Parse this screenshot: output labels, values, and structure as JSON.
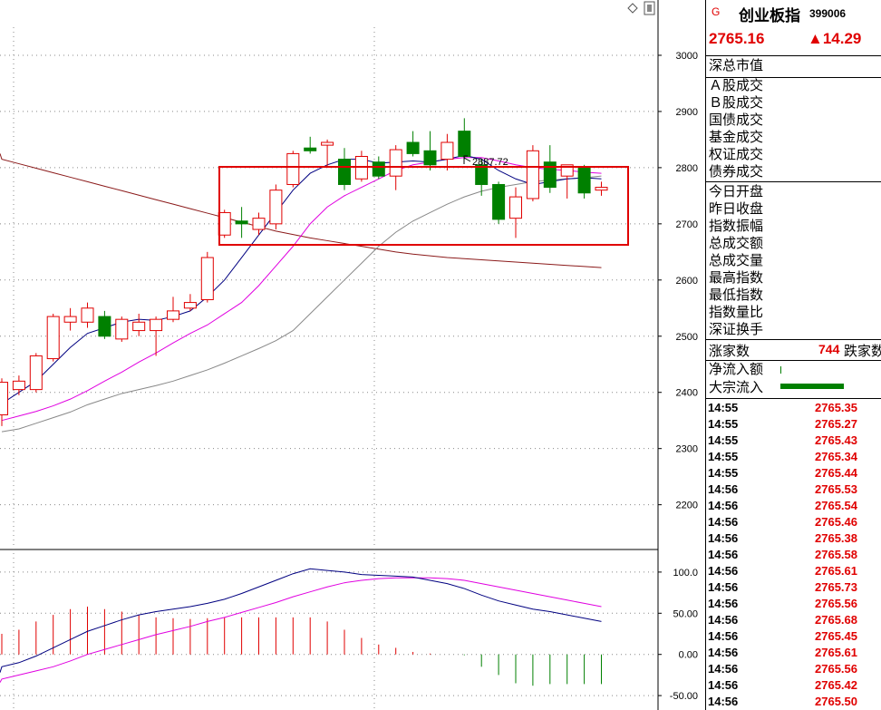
{
  "chart": {
    "y_axis_labels": [
      "3000",
      "2900",
      "2800",
      "2700",
      "2600",
      "2500",
      "2400",
      "2300",
      "2200"
    ],
    "macd_axis_labels": [
      "100.0",
      "50.00",
      "0.00",
      "-50.00"
    ],
    "peak_label": "2887.72"
  },
  "panel": {
    "g_mark": "G",
    "index_name": "创业板指",
    "index_code": "399006",
    "current_price": "2765.16",
    "change": "▲14.29",
    "labels_group1": [
      "深总市值"
    ],
    "labels_group2": [
      "Ａ股成交",
      "Ｂ股成交",
      "国债成交",
      "基金成交",
      "权证成交",
      "债券成交"
    ],
    "labels_group3": [
      "今日开盘",
      "昨日收盘",
      "指数振幅",
      "总成交额",
      "总成交量",
      "最高指数",
      "最低指数",
      "指数量比",
      "深证换手"
    ],
    "up_count_label": "涨家数",
    "up_count": "744",
    "down_count_label": "跌家数",
    "net_inflow_label": "净流入额",
    "block_inflow_label": "大宗流入",
    "ticks": [
      {
        "time": "14:55",
        "price": "2765.35"
      },
      {
        "time": "14:55",
        "price": "2765.27"
      },
      {
        "time": "14:55",
        "price": "2765.43"
      },
      {
        "time": "14:55",
        "price": "2765.34"
      },
      {
        "time": "14:55",
        "price": "2765.44"
      },
      {
        "time": "14:56",
        "price": "2765.53"
      },
      {
        "time": "14:56",
        "price": "2765.54"
      },
      {
        "time": "14:56",
        "price": "2765.46"
      },
      {
        "time": "14:56",
        "price": "2765.38"
      },
      {
        "time": "14:56",
        "price": "2765.58"
      },
      {
        "time": "14:56",
        "price": "2765.61"
      },
      {
        "time": "14:56",
        "price": "2765.73"
      },
      {
        "time": "14:56",
        "price": "2765.56"
      },
      {
        "time": "14:56",
        "price": "2765.68"
      },
      {
        "time": "14:56",
        "price": "2765.45"
      },
      {
        "time": "14:56",
        "price": "2765.61"
      },
      {
        "time": "14:56",
        "price": "2765.56"
      },
      {
        "time": "14:56",
        "price": "2765.42"
      },
      {
        "time": "14:56",
        "price": "2765.50"
      }
    ]
  },
  "colors": {
    "up": "#e00000",
    "down": "#008000",
    "ma5": "#000080",
    "ma10": "#e000e0",
    "ma20": "#888888",
    "ma60": "#8b1a1a",
    "highlight_box": "#e00000"
  },
  "chart_data": {
    "type": "candlestick",
    "note_items": "daily OHLC of index",
    "candles": [
      {
        "o": 2360,
        "h": 2425,
        "l": 2340,
        "c": 2418
      },
      {
        "o": 2405,
        "h": 2430,
        "l": 2395,
        "c": 2420
      },
      {
        "o": 2405,
        "h": 2470,
        "l": 2400,
        "c": 2465
      },
      {
        "o": 2460,
        "h": 2540,
        "l": 2455,
        "c": 2535
      },
      {
        "o": 2525,
        "h": 2550,
        "l": 2510,
        "c": 2535
      },
      {
        "o": 2525,
        "h": 2560,
        "l": 2515,
        "c": 2550
      },
      {
        "o": 2535,
        "h": 2545,
        "l": 2495,
        "c": 2500
      },
      {
        "o": 2495,
        "h": 2535,
        "l": 2490,
        "c": 2530
      },
      {
        "o": 2510,
        "h": 2540,
        "l": 2500,
        "c": 2525
      },
      {
        "o": 2510,
        "h": 2535,
        "l": 2465,
        "c": 2530
      },
      {
        "o": 2530,
        "h": 2570,
        "l": 2525,
        "c": 2545
      },
      {
        "o": 2550,
        "h": 2575,
        "l": 2545,
        "c": 2560
      },
      {
        "o": 2565,
        "h": 2650,
        "l": 2560,
        "c": 2640
      },
      {
        "o": 2680,
        "h": 2725,
        "l": 2675,
        "c": 2720
      },
      {
        "o": 2705,
        "h": 2730,
        "l": 2675,
        "c": 2700
      },
      {
        "o": 2690,
        "h": 2720,
        "l": 2680,
        "c": 2710
      },
      {
        "o": 2700,
        "h": 2770,
        "l": 2690,
        "c": 2760
      },
      {
        "o": 2770,
        "h": 2830,
        "l": 2765,
        "c": 2825
      },
      {
        "o": 2835,
        "h": 2855,
        "l": 2825,
        "c": 2830
      },
      {
        "o": 2840,
        "h": 2850,
        "l": 2800,
        "c": 2845
      },
      {
        "o": 2815,
        "h": 2835,
        "l": 2760,
        "c": 2770
      },
      {
        "o": 2780,
        "h": 2830,
        "l": 2775,
        "c": 2820
      },
      {
        "o": 2810,
        "h": 2820,
        "l": 2780,
        "c": 2785
      },
      {
        "o": 2785,
        "h": 2840,
        "l": 2760,
        "c": 2832
      },
      {
        "o": 2845,
        "h": 2865,
        "l": 2820,
        "c": 2825
      },
      {
        "o": 2830,
        "h": 2865,
        "l": 2795,
        "c": 2805
      },
      {
        "o": 2815,
        "h": 2860,
        "l": 2795,
        "c": 2845
      },
      {
        "o": 2865,
        "h": 2888,
        "l": 2815,
        "c": 2820
      },
      {
        "o": 2805,
        "h": 2815,
        "l": 2750,
        "c": 2770
      },
      {
        "o": 2770,
        "h": 2775,
        "l": 2700,
        "c": 2708
      },
      {
        "o": 2710,
        "h": 2765,
        "l": 2675,
        "c": 2748
      },
      {
        "o": 2745,
        "h": 2840,
        "l": 2740,
        "c": 2830
      },
      {
        "o": 2810,
        "h": 2840,
        "l": 2755,
        "c": 2765
      },
      {
        "o": 2785,
        "h": 2805,
        "l": 2745,
        "c": 2805
      },
      {
        "o": 2800,
        "h": 2805,
        "l": 2745,
        "c": 2755
      },
      {
        "o": 2760,
        "h": 2775,
        "l": 2750,
        "c": 2765
      }
    ],
    "ma5": [
      2380,
      2400,
      2420,
      2450,
      2480,
      2505,
      2515,
      2525,
      2530,
      2528,
      2535,
      2545,
      2570,
      2600,
      2640,
      2680,
      2720,
      2760,
      2790,
      2805,
      2815,
      2815,
      2808,
      2810,
      2812,
      2810,
      2815,
      2822,
      2815,
      2795,
      2780,
      2770,
      2775,
      2780,
      2782,
      2780
    ],
    "ma10": [
      2350,
      2358,
      2366,
      2376,
      2388,
      2403,
      2420,
      2436,
      2454,
      2470,
      2488,
      2505,
      2520,
      2540,
      2560,
      2590,
      2625,
      2660,
      2700,
      2730,
      2750,
      2765,
      2780,
      2795,
      2805,
      2810,
      2815,
      2818,
      2818,
      2812,
      2805,
      2800,
      2797,
      2795,
      2792,
      2790
    ],
    "ma20": [
      2330,
      2335,
      2345,
      2355,
      2365,
      2378,
      2388,
      2398,
      2405,
      2412,
      2420,
      2430,
      2440,
      2452,
      2465,
      2478,
      2492,
      2510,
      2540,
      2570,
      2600,
      2630,
      2660,
      2685,
      2705,
      2720,
      2735,
      2748,
      2758,
      2765,
      2770,
      2775,
      2778,
      2780,
      2782,
      2785
    ],
    "ma60": [
      2815,
      2807,
      2799,
      2791,
      2783,
      2775,
      2767,
      2759,
      2751,
      2743,
      2735,
      2727,
      2719,
      2711,
      2703,
      2695,
      2687,
      2681,
      2675,
      2670,
      2665,
      2660,
      2655,
      2650,
      2646,
      2643,
      2640,
      2638,
      2636,
      2634,
      2632,
      2630,
      2628,
      2626,
      2624,
      2622
    ],
    "y_range": [
      2130,
      3050
    ],
    "macd": {
      "dif": [
        -15,
        -10,
        -2,
        8,
        18,
        28,
        35,
        42,
        48,
        52,
        55,
        58,
        62,
        67,
        74,
        82,
        90,
        98,
        104,
        102,
        100,
        97,
        96,
        95,
        94,
        90,
        86,
        80,
        72,
        65,
        60,
        55,
        52,
        48,
        44,
        40
      ],
      "dea": [
        -30,
        -25,
        -20,
        -15,
        -8,
        0,
        6,
        12,
        18,
        24,
        29,
        34,
        40,
        45,
        51,
        57,
        63,
        70,
        76,
        82,
        87,
        90,
        92,
        93,
        93,
        93,
        92,
        90,
        86,
        82,
        78,
        74,
        70,
        66,
        62,
        58
      ],
      "hist": [
        25,
        30,
        40,
        48,
        55,
        58,
        55,
        52,
        48,
        45,
        44,
        43,
        44,
        45,
        45,
        45,
        45,
        45,
        45,
        40,
        30,
        20,
        12,
        8,
        3,
        1,
        0,
        -1,
        -15,
        -25,
        -35,
        -38,
        -36,
        -36,
        -36,
        -36
      ],
      "y_range": [
        -62,
        112
      ]
    }
  }
}
